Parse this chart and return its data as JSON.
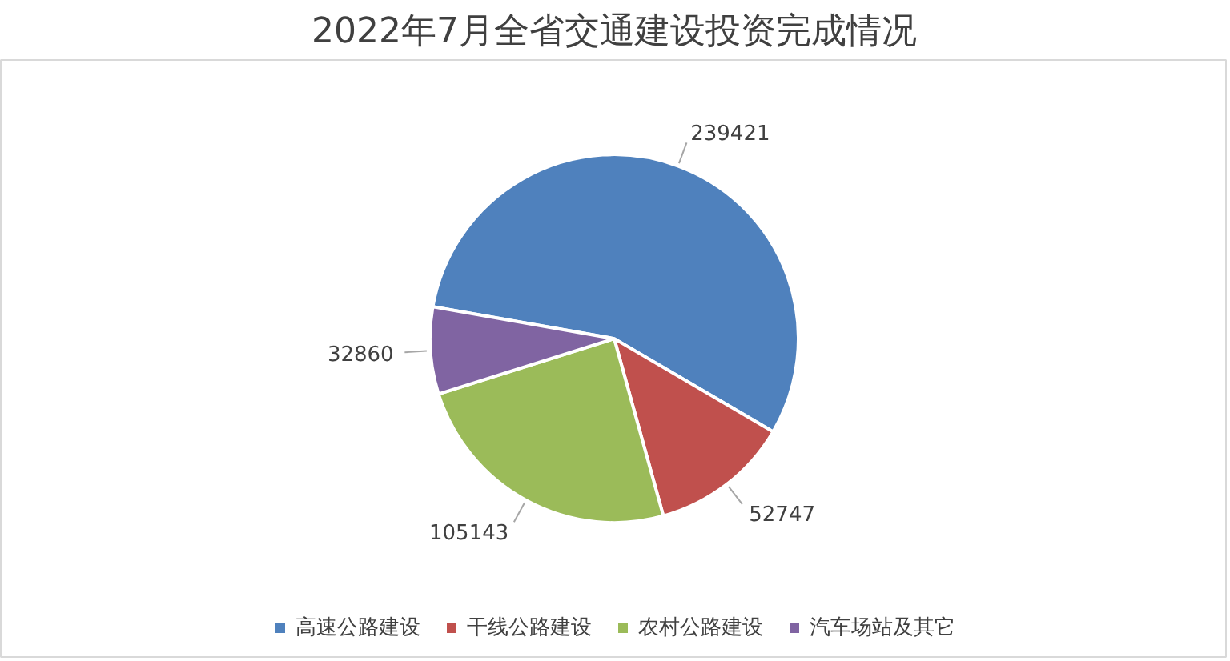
{
  "chart_data": {
    "type": "pie",
    "title": "2022年7月全省交通建设投资完成情况",
    "categories": [
      "高速公路建设",
      "干线公路建设",
      "农村公路建设",
      "汽车场站及其它"
    ],
    "values": [
      239421,
      52747,
      105143,
      32860
    ],
    "colors": [
      "#4f81bd",
      "#c0504d",
      "#9bbb59",
      "#8064a2"
    ],
    "data_labels": true,
    "legend": "bottom"
  }
}
